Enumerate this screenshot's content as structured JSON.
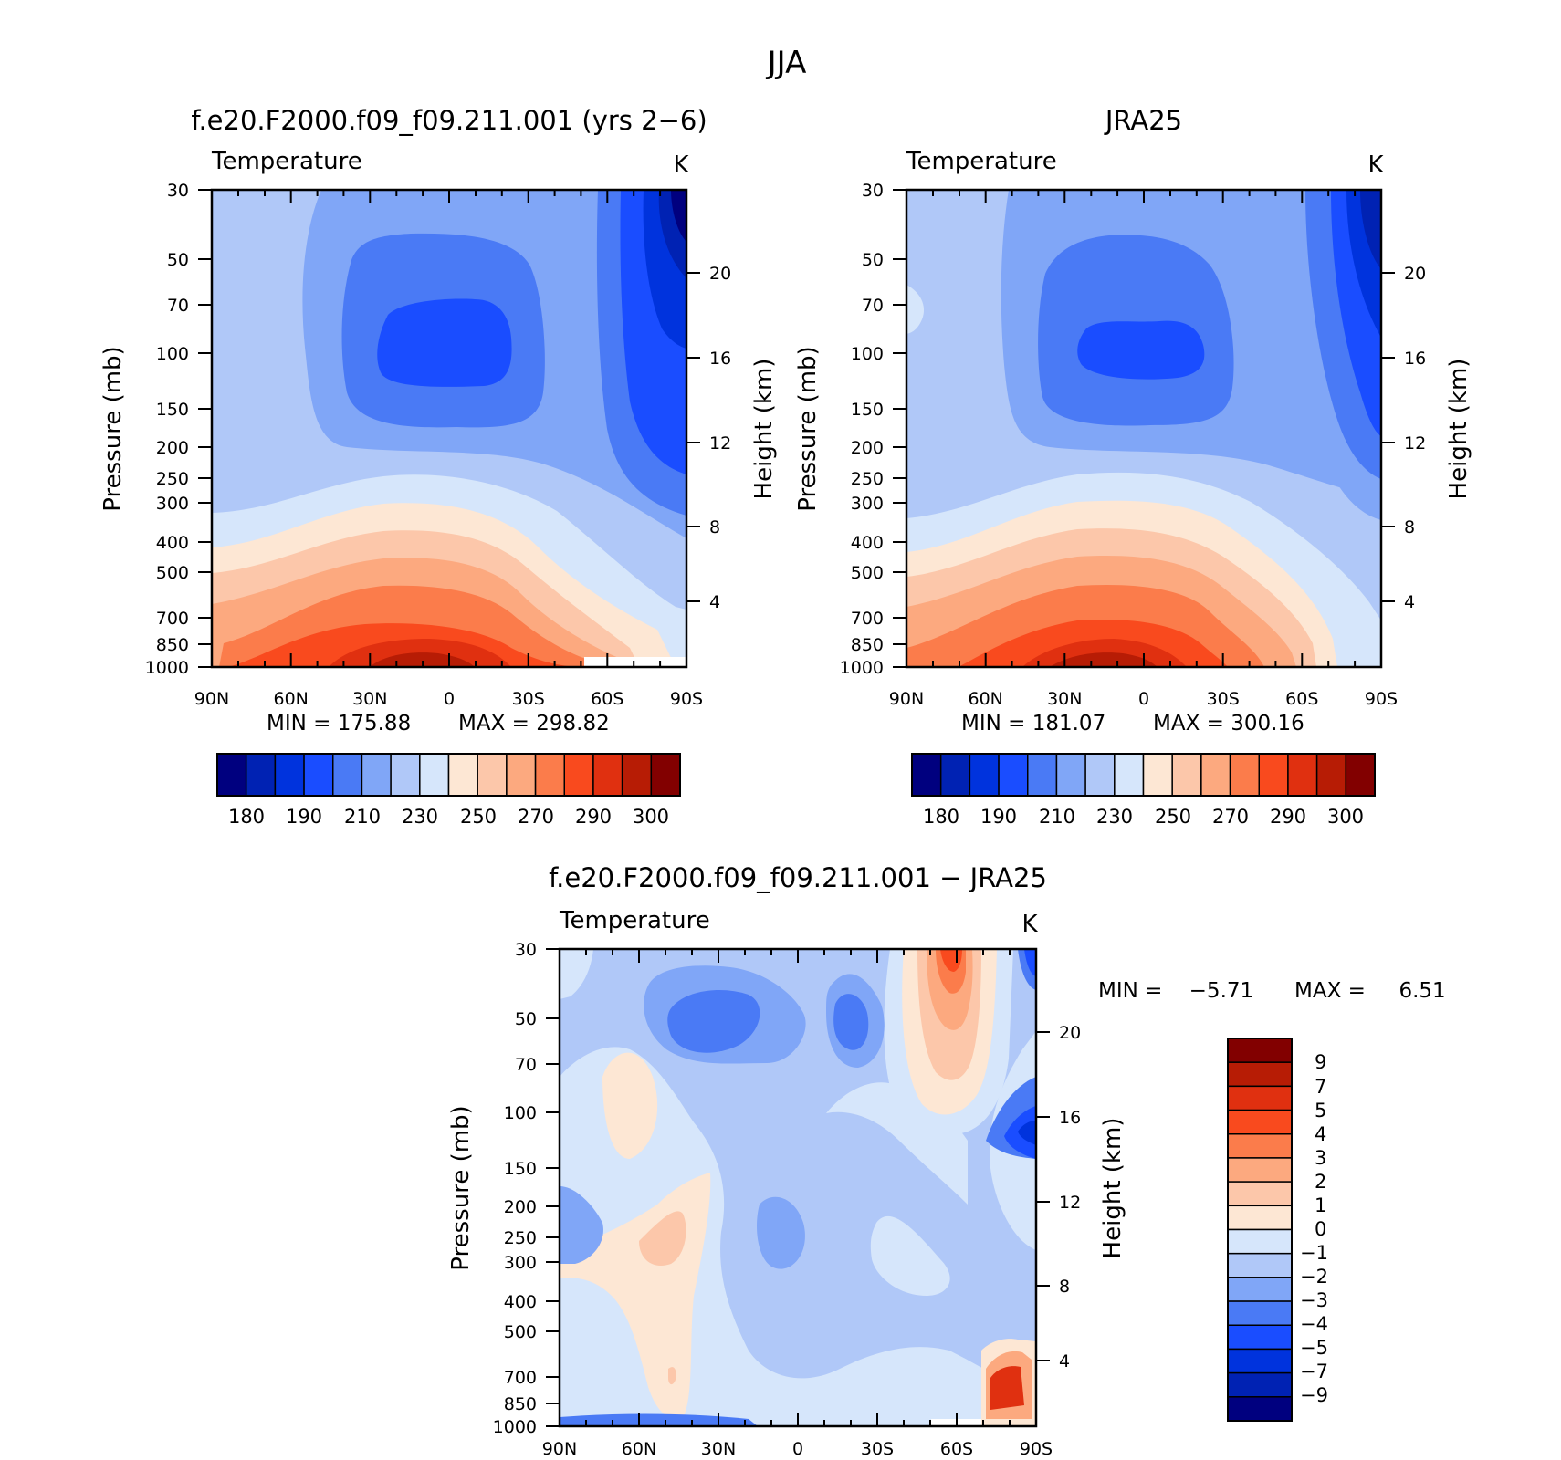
{
  "title": "JJA",
  "chart_data": [
    {
      "type": "heatmap",
      "id": "model",
      "title": "f.e20.F2000.f09_f09.211.001 (yrs 2−6)",
      "variable": "Temperature",
      "units": "K",
      "ylabel": "Pressure (mb)",
      "ylabel_right": "Height (km)",
      "x_ticks": [
        "90N",
        "60N",
        "30N",
        "0",
        "30S",
        "60S",
        "90S"
      ],
      "y_ticks": [
        "30",
        "50",
        "70",
        "100",
        "150",
        "200",
        "250",
        "300",
        "400",
        "500",
        "700",
        "850",
        "1000"
      ],
      "y_ticks_right": [
        "20",
        "16",
        "12",
        "8",
        "4"
      ],
      "xlim": [
        90,
        -90
      ],
      "ylim": [
        1000,
        30
      ],
      "min_label": "MIN =  175.88",
      "max_label": "MAX =  298.82",
      "min": 175.88,
      "max": 298.82,
      "colorbar_labels": [
        "180",
        "190",
        "210",
        "230",
        "250",
        "270",
        "290",
        "300"
      ]
    },
    {
      "type": "heatmap",
      "id": "obs",
      "title": "JRA25",
      "variable": "Temperature",
      "units": "K",
      "ylabel": "Pressure (mb)",
      "ylabel_right": "Height (km)",
      "x_ticks": [
        "90N",
        "60N",
        "30N",
        "0",
        "30S",
        "60S",
        "90S"
      ],
      "y_ticks": [
        "30",
        "50",
        "70",
        "100",
        "150",
        "200",
        "250",
        "300",
        "400",
        "500",
        "700",
        "850",
        "1000"
      ],
      "y_ticks_right": [
        "20",
        "16",
        "12",
        "8",
        "4"
      ],
      "xlim": [
        90,
        -90
      ],
      "ylim": [
        1000,
        30
      ],
      "min_label": "MIN =  181.07",
      "max_label": "MAX =  300.16",
      "min": 181.07,
      "max": 300.16,
      "colorbar_labels": [
        "180",
        "190",
        "210",
        "230",
        "250",
        "270",
        "290",
        "300"
      ]
    },
    {
      "type": "heatmap",
      "id": "diff",
      "title": "f.e20.F2000.f09_f09.211.001 − JRA25",
      "variable": "Temperature",
      "units": "K",
      "ylabel": "Pressure (mb)",
      "ylabel_right": "Height (km)",
      "x_ticks": [
        "90N",
        "60N",
        "30N",
        "0",
        "30S",
        "60S",
        "90S"
      ],
      "y_ticks": [
        "30",
        "50",
        "70",
        "100",
        "150",
        "200",
        "250",
        "300",
        "400",
        "500",
        "700",
        "850",
        "1000"
      ],
      "y_ticks_right": [
        "20",
        "16",
        "12",
        "8",
        "4"
      ],
      "xlim": [
        90,
        -90
      ],
      "ylim": [
        1000,
        30
      ],
      "min_label": "MIN =    −5.71",
      "max_label": "MAX =     6.51",
      "min": -5.71,
      "max": 6.51,
      "colorbar_labels": [
        "9",
        "7",
        "5",
        "4",
        "3",
        "2",
        "1",
        "0",
        "−1",
        "−2",
        "−3",
        "−4",
        "−5",
        "−7",
        "−9"
      ]
    }
  ],
  "palette": [
    "#00007f",
    "#0022b3",
    "#0033dd",
    "#1a4dff",
    "#4a7af5",
    "#80a6f7",
    "#b0c8f8",
    "#d6e6fb",
    "#fde7d4",
    "#fcc7aa",
    "#fca97f",
    "#fb7c4b",
    "#f94a1e",
    "#e03010",
    "#b71c05",
    "#820000"
  ],
  "palette_diff": [
    "#820000",
    "#b71c05",
    "#e03010",
    "#f94a1e",
    "#fb7c4b",
    "#fca97f",
    "#fcc7aa",
    "#fde7d4",
    "#d6e6fb",
    "#b0c8f8",
    "#80a6f7",
    "#4a7af5",
    "#1a4dff",
    "#0033dd",
    "#0022b3",
    "#00007f"
  ]
}
